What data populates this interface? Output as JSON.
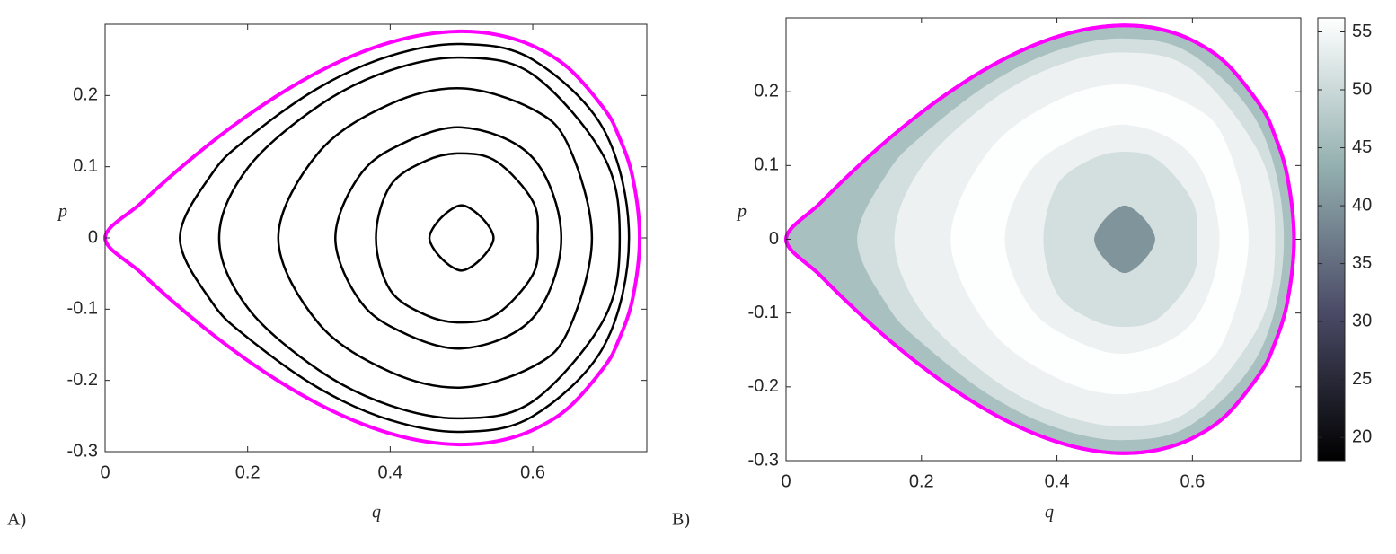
{
  "chart_data": [
    {
      "type": "line",
      "panel_label": "A)",
      "xlabel": "q",
      "ylabel": "p",
      "xlim": [
        0,
        0.76
      ],
      "ylim": [
        -0.3,
        0.3
      ],
      "xticks": [
        0,
        0.2,
        0.4,
        0.6
      ],
      "yticks": [
        -0.3,
        -0.2,
        -0.1,
        0,
        0.1,
        0.2
      ],
      "series": [
        {
          "color": "#000000",
          "x": [
            0.105,
            0.15,
            0.2,
            0.3,
            0.4,
            0.5,
            0.6,
            0.7,
            0.735,
            0.7,
            0.6,
            0.5,
            0.4,
            0.3,
            0.2,
            0.15
          ],
          "values": [
            0,
            0.0903,
            0.14,
            0.211,
            0.2557,
            0.2722,
            0.2503,
            0.1515,
            0,
            -0.1515,
            -0.2503,
            -0.2722,
            -0.2557,
            -0.211,
            -0.14,
            -0.0903
          ]
        },
        {
          "color": "#000000",
          "x": [
            0.16,
            0.2,
            0.3,
            0.4,
            0.5,
            0.6,
            0.7,
            0.722,
            0.7,
            0.6,
            0.5,
            0.4,
            0.3,
            0.2
          ],
          "values": [
            0,
            0.098,
            0.1857,
            0.2353,
            0.2532,
            0.2295,
            0.1138,
            0,
            -0.1138,
            -0.2295,
            -0.2532,
            -0.2353,
            -0.1857,
            -0.098
          ]
        },
        {
          "color": "#000000",
          "x": [
            0.243,
            0.3,
            0.4,
            0.5,
            0.6,
            0.65,
            0.683,
            0.65,
            0.6,
            0.5,
            0.4,
            0.3
          ],
          "values": [
            0,
            0.1204,
            0.188,
            0.21,
            0.1807,
            0.1298,
            0,
            -0.1298,
            -0.1807,
            -0.21,
            -0.188,
            -0.1204
          ]
        },
        {
          "color": "#000000",
          "x": [
            0.323,
            0.35,
            0.4,
            0.5,
            0.6,
            0.64,
            0.6,
            0.5,
            0.4,
            0.35
          ],
          "values": [
            0,
            0.077,
            0.124,
            0.1552,
            0.1125,
            0,
            -0.1125,
            -0.1552,
            -0.124,
            -0.077
          ]
        },
        {
          "color": "#000000",
          "x": [
            0.38,
            0.4,
            0.45,
            0.5,
            0.55,
            0.6,
            0.607,
            0.6,
            0.55,
            0.5,
            0.45,
            0.4
          ],
          "values": [
            0,
            0.0732,
            0.1083,
            0.1187,
            0.1068,
            0.0516,
            0,
            -0.0516,
            -0.1068,
            -0.1187,
            -0.1083,
            -0.0732
          ]
        },
        {
          "color": "#000000",
          "x": [
            0.455,
            0.5,
            0.545,
            0.5
          ],
          "values": [
            0,
            0.0458,
            0,
            -0.0458
          ]
        },
        {
          "color": "#ff00ff",
          "x": [
            0,
            0.05,
            0.1,
            0.15,
            0.2,
            0.25,
            0.3,
            0.35,
            0.4,
            0.45,
            0.5,
            0.55,
            0.6,
            0.65,
            0.7,
            0.72,
            0.74,
            0.75,
            0.74,
            0.72,
            0.7,
            0.65,
            0.6,
            0.55,
            0.5,
            0.45,
            0.4,
            0.35,
            0.3,
            0.25,
            0.2,
            0.15,
            0.1,
            0.05
          ],
          "values": [
            0,
            0.0485,
            0.0935,
            0.1348,
            0.172,
            0.205,
            0.2335,
            0.2568,
            0.2745,
            0.2859,
            0.29,
            0.2853,
            0.2696,
            0.2385,
            0.1816,
            0.1447,
            0.0858,
            0,
            -0.0858,
            -0.1447,
            -0.1816,
            -0.2385,
            -0.2696,
            -0.2853,
            -0.29,
            -0.2859,
            -0.2745,
            -0.2568,
            -0.2335,
            -0.205,
            -0.172,
            -0.1348,
            -0.0935,
            -0.0485
          ]
        }
      ]
    },
    {
      "type": "contourf",
      "panel_label": "B)",
      "xlabel": "q",
      "ylabel": "p",
      "xlim": [
        0,
        0.76
      ],
      "ylim": [
        -0.3,
        0.3
      ],
      "xticks": [
        0,
        0.2,
        0.4,
        0.6
      ],
      "yticks": [
        -0.3,
        -0.2,
        -0.1,
        0,
        0.1,
        0.2
      ],
      "clim": [
        18,
        56.2
      ],
      "cticks": [
        20,
        25,
        30,
        35,
        40,
        45,
        50,
        55
      ],
      "colormap": [
        "#000000",
        "#4a4a66",
        "#94b0b0",
        "#ffffff"
      ],
      "series": [
        {
          "color": "#ff00ff",
          "z": 46,
          "x": [
            0,
            0.05,
            0.1,
            0.15,
            0.2,
            0.25,
            0.3,
            0.35,
            0.4,
            0.45,
            0.5,
            0.55,
            0.6,
            0.65,
            0.7,
            0.72,
            0.74,
            0.75,
            0.74,
            0.72,
            0.7,
            0.65,
            0.6,
            0.55,
            0.5,
            0.45,
            0.4,
            0.35,
            0.3,
            0.25,
            0.2,
            0.15,
            0.1,
            0.05
          ],
          "values": [
            0,
            0.0485,
            0.0935,
            0.1348,
            0.172,
            0.205,
            0.2335,
            0.2568,
            0.2745,
            0.2859,
            0.29,
            0.2853,
            0.2696,
            0.2385,
            0.1816,
            0.1447,
            0.0858,
            0,
            -0.0858,
            -0.1447,
            -0.1816,
            -0.2385,
            -0.2696,
            -0.2853,
            -0.29,
            -0.2859,
            -0.2745,
            -0.2568,
            -0.2335,
            -0.205,
            -0.172,
            -0.1348,
            -0.0935,
            -0.0485
          ]
        },
        {
          "z": 51,
          "x": [
            0.105,
            0.15,
            0.2,
            0.3,
            0.4,
            0.5,
            0.6,
            0.7,
            0.735,
            0.7,
            0.6,
            0.5,
            0.4,
            0.3,
            0.2,
            0.15
          ],
          "values": [
            0,
            0.0903,
            0.14,
            0.211,
            0.2557,
            0.2722,
            0.2503,
            0.1515,
            0,
            -0.1515,
            -0.2503,
            -0.2722,
            -0.2557,
            -0.211,
            -0.14,
            -0.0903
          ]
        },
        {
          "z": 54,
          "x": [
            0.16,
            0.2,
            0.3,
            0.4,
            0.5,
            0.6,
            0.7,
            0.722,
            0.7,
            0.6,
            0.5,
            0.4,
            0.3,
            0.2
          ],
          "values": [
            0,
            0.098,
            0.1857,
            0.2353,
            0.2532,
            0.2295,
            0.1138,
            0,
            -0.1138,
            -0.2295,
            -0.2532,
            -0.2353,
            -0.1857,
            -0.098
          ]
        },
        {
          "z": 56,
          "x": [
            0.243,
            0.3,
            0.4,
            0.5,
            0.6,
            0.65,
            0.683,
            0.65,
            0.6,
            0.5,
            0.4,
            0.3
          ],
          "values": [
            0,
            0.1204,
            0.188,
            0.21,
            0.1807,
            0.1298,
            0,
            -0.1298,
            -0.1807,
            -0.21,
            -0.188,
            -0.1204
          ]
        },
        {
          "z": 54,
          "x": [
            0.323,
            0.35,
            0.4,
            0.5,
            0.6,
            0.64,
            0.6,
            0.5,
            0.4,
            0.35
          ],
          "values": [
            0,
            0.077,
            0.124,
            0.1552,
            0.1125,
            0,
            -0.1125,
            -0.1552,
            -0.124,
            -0.077
          ]
        },
        {
          "z": 51,
          "x": [
            0.38,
            0.4,
            0.45,
            0.5,
            0.55,
            0.6,
            0.607,
            0.6,
            0.55,
            0.5,
            0.45,
            0.4
          ],
          "values": [
            0,
            0.0732,
            0.1083,
            0.1187,
            0.1068,
            0.0516,
            0,
            -0.0516,
            -0.1068,
            -0.1187,
            -0.1083,
            -0.0732
          ]
        },
        {
          "z": 40,
          "x": [
            0.455,
            0.5,
            0.545,
            0.5
          ],
          "values": [
            0,
            0.0458,
            0,
            -0.0458
          ]
        }
      ]
    }
  ]
}
